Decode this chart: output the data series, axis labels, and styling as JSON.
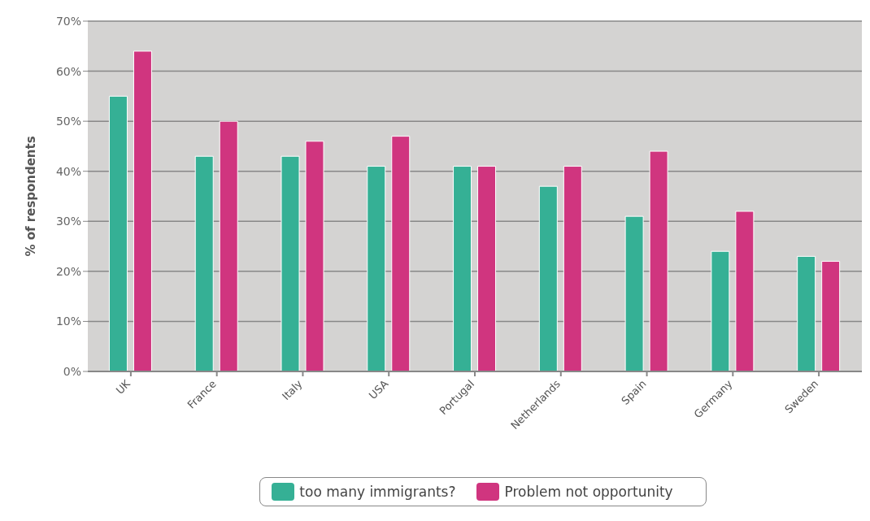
{
  "chart_data": {
    "type": "bar",
    "ylabel": "% of respondents",
    "categories": [
      "UK",
      "France",
      "Italy",
      "USA",
      "Portugal",
      "Netherlands",
      "Spain",
      "Germany",
      "Sweden"
    ],
    "series": [
      {
        "name": "too many immigrants?",
        "color": "#35b095",
        "values": [
          55,
          43,
          43,
          41,
          41,
          37,
          31,
          24,
          23
        ]
      },
      {
        "name": "Problem not opportunity",
        "color": "#d0357f",
        "values": [
          64,
          50,
          46,
          47,
          41,
          41,
          44,
          32,
          22
        ]
      }
    ],
    "ylim": [
      0,
      70
    ],
    "yticks": [
      {
        "value": 0,
        "label": "0%"
      },
      {
        "value": 10,
        "label": "10%"
      },
      {
        "value": 20,
        "label": "20%"
      },
      {
        "value": 30,
        "label": "30%"
      },
      {
        "value": 40,
        "label": "40%"
      },
      {
        "value": 50,
        "label": "50%"
      },
      {
        "value": 60,
        "label": "60%"
      },
      {
        "value": 70,
        "label": "70%"
      }
    ],
    "grid": "y",
    "legend": "bottom"
  }
}
